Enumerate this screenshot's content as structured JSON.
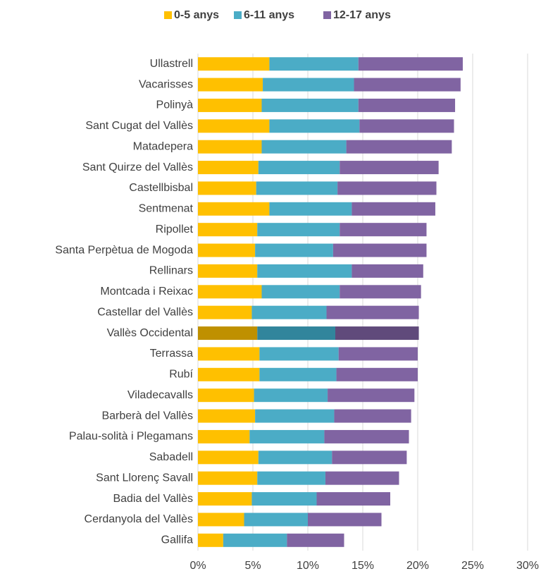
{
  "chart_data": {
    "type": "stacked_barh",
    "categories": [
      "Ullastrell",
      "Vacarisses",
      "Polinyà",
      "Sant Cugat del Vallès",
      "Matadepera",
      "Sant Quirze del Vallès",
      "Castellbisbal",
      "Sentmenat",
      "Ripollet",
      "Santa Perpètua de Mogoda",
      "Rellinars",
      "Montcada i Reixac",
      "Castellar del Vallès",
      "Vallès Occidental",
      "Terrassa",
      "Rubí",
      "Viladecavalls",
      "Barberà del Vallès",
      "Palau-solità i Plegamans",
      "Sabadell",
      "Sant Llorenç Savall",
      "Badia del Vallès",
      "Cerdanyola del Vallès",
      "Gallifa"
    ],
    "series": [
      {
        "name": "0-5 anys",
        "color": "#FFC000",
        "highlight_color": "#BF9000",
        "values": [
          6.5,
          5.9,
          5.8,
          6.5,
          5.8,
          5.5,
          5.3,
          6.5,
          5.4,
          5.2,
          5.4,
          5.8,
          4.9,
          5.4,
          5.6,
          5.6,
          5.1,
          5.2,
          4.7,
          5.5,
          5.4,
          4.9,
          4.2,
          2.3
        ]
      },
      {
        "name": "6-11 anys",
        "color": "#4BACC6",
        "highlight_color": "#31859C",
        "values": [
          8.1,
          8.3,
          8.8,
          8.2,
          7.7,
          7.4,
          7.4,
          7.5,
          7.5,
          7.1,
          8.6,
          7.1,
          6.8,
          7.1,
          7.2,
          7.0,
          6.7,
          7.2,
          6.8,
          6.7,
          6.2,
          5.9,
          5.8,
          5.8
        ]
      },
      {
        "name": "12-17 anys",
        "color": "#8064A2",
        "highlight_color": "#604A7B",
        "values": [
          9.5,
          9.7,
          8.8,
          8.6,
          9.6,
          9.0,
          9.0,
          7.6,
          7.9,
          8.5,
          6.5,
          7.4,
          8.4,
          7.6,
          7.2,
          7.4,
          7.9,
          7.0,
          7.7,
          6.8,
          6.7,
          6.7,
          6.7,
          5.2
        ]
      }
    ],
    "highlight": "Vallès Occidental",
    "xlim": [
      0,
      30
    ],
    "xticks": [
      {
        "value": 0,
        "label": "0%"
      },
      {
        "value": 5,
        "label": "5%"
      },
      {
        "value": 10,
        "label": "10%"
      },
      {
        "value": 15,
        "label": "15%"
      },
      {
        "value": 20,
        "label": "20%"
      },
      {
        "value": 25,
        "label": "25%"
      },
      {
        "value": 30,
        "label": "30%"
      }
    ],
    "grid": true,
    "legend": "top"
  }
}
